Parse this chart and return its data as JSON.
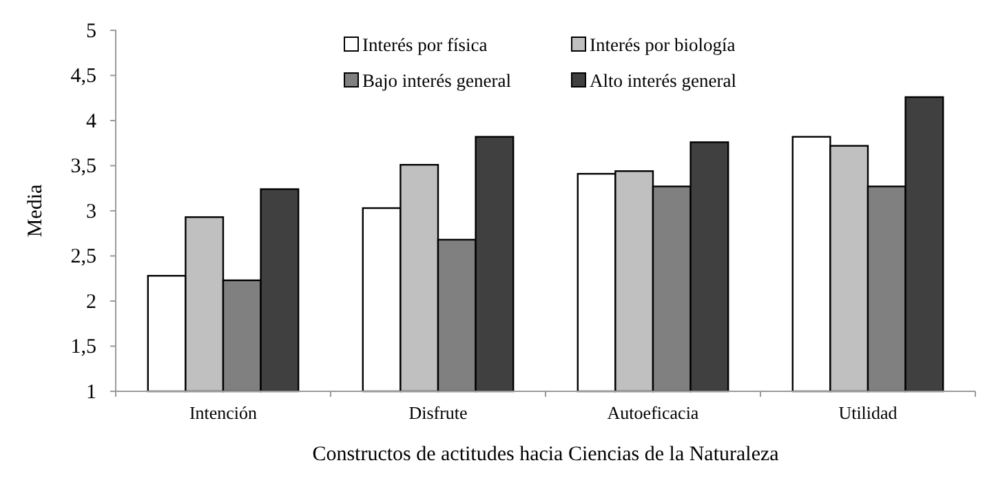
{
  "chart_data": {
    "type": "bar",
    "xlabel": "Constructos de actitudes hacia Ciencias de la Naturaleza",
    "ylabel": "Media",
    "categories": [
      "Intención",
      "Disfrute",
      "Autoeficacia",
      "Utilidad"
    ],
    "series": [
      {
        "name": "Interés por física",
        "color": "#ffffff",
        "values": [
          2.28,
          3.03,
          3.41,
          3.82
        ]
      },
      {
        "name": "Interés por biología",
        "color": "#c0c0c0",
        "values": [
          2.93,
          3.51,
          3.44,
          3.72
        ]
      },
      {
        "name": "Bajo interés general",
        "color": "#808080",
        "values": [
          2.23,
          2.68,
          3.27,
          3.27
        ]
      },
      {
        "name": "Alto interés general",
        "color": "#404040",
        "values": [
          3.24,
          3.82,
          3.76,
          4.26
        ]
      }
    ],
    "ylim": [
      1,
      5
    ],
    "yticks": [
      {
        "value": 1,
        "label": "1"
      },
      {
        "value": 1.5,
        "label": "1,5"
      },
      {
        "value": 2,
        "label": "2"
      },
      {
        "value": 2.5,
        "label": "2,5"
      },
      {
        "value": 3,
        "label": "3"
      },
      {
        "value": 3.5,
        "label": "3,5"
      },
      {
        "value": 4,
        "label": "4"
      },
      {
        "value": 4.5,
        "label": "4,5"
      },
      {
        "value": 5,
        "label": "5"
      }
    ],
    "legend": "top right"
  }
}
